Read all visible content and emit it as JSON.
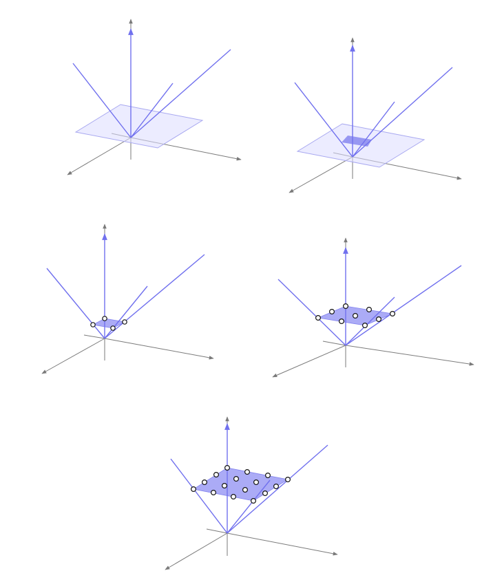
{
  "figure": {
    "type": "diagram",
    "panel_count": 5,
    "colors": {
      "axis": "#7a7a7a",
      "ray": "#7070ee",
      "plane_light": "#dcdcff",
      "plane_solid": "#9c9cf4",
      "point_fill": "#ffffff",
      "point_stroke": "#111111"
    },
    "panels": [
      {
        "plane": "large-light",
        "rays": 4,
        "points": 0,
        "highlight_square": false
      },
      {
        "plane": "large-light",
        "rays": 4,
        "points": 0,
        "highlight_square": true
      },
      {
        "plane": "small-solid",
        "rays": 4,
        "points": 4,
        "highlight_square": false
      },
      {
        "plane": "medium-solid",
        "rays": 4,
        "points": 9,
        "highlight_square": false
      },
      {
        "plane": "large-solid",
        "rays": 4,
        "points": 16,
        "highlight_square": false
      }
    ]
  }
}
